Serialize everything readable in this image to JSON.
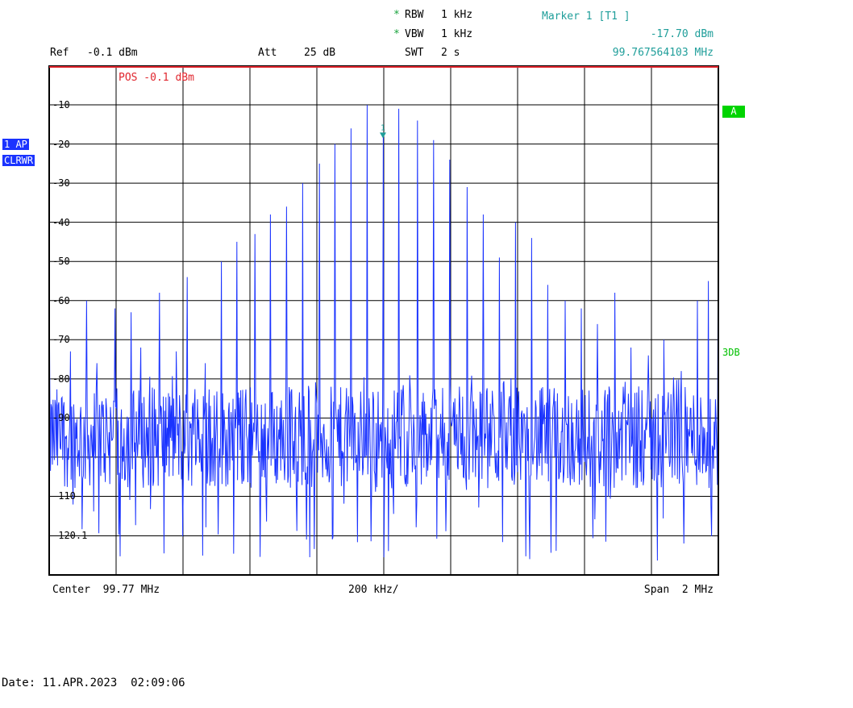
{
  "header": {
    "rbw_label": "RBW",
    "rbw_value": "1 kHz",
    "vbw_label": "VBW",
    "vbw_value": "1 kHz",
    "swt_label": "SWT",
    "swt_value": "2 s",
    "ref_label": "Ref",
    "ref_value": "-0.1 dBm",
    "att_label": "Att",
    "att_value": "25 dB",
    "star_symbol": "*"
  },
  "marker": {
    "title": "Marker 1 [T1 ]",
    "level": "-17.70 dBm",
    "frequency": "99.767564103 MHz",
    "flag": "1"
  },
  "pos_label": "POS -0.1 dBm",
  "side_badges": {
    "trace": "1 AP",
    "mode": "CLRWR"
  },
  "right_badges": {
    "a": "A",
    "threshold": "3DB"
  },
  "footer": {
    "center": "Center  99.77 MHz",
    "div": "200 kHz/",
    "span": "Span  2 MHz",
    "date": "Date: 11.APR.2023  02:09:06"
  },
  "colors": {
    "trace": "#1a33ff",
    "marker": "#1f9e9a",
    "ref_line": "#e0262e"
  },
  "chart_data": {
    "type": "line",
    "title": "",
    "xlabel": "",
    "ylabel": "",
    "center_mhz": 99.77,
    "span_mhz": 2,
    "x_range_mhz": [
      98.77,
      100.77
    ],
    "ylim": [
      -130.1,
      -0.1
    ],
    "y_ticks": [
      "-10",
      "-20",
      "-30",
      "-40",
      "-50",
      "-60",
      "-70",
      "-80",
      "-90",
      "-110",
      "-120.1"
    ],
    "y_tick_values": [
      -10,
      -20,
      -30,
      -40,
      -50,
      -60,
      -70,
      -80,
      -90,
      -110,
      -120.1
    ],
    "grid": true,
    "noise_floor_dbm": -95,
    "spurs_mhz": [
      98.77,
      98.833,
      98.881,
      98.913,
      98.967,
      99.015,
      99.043,
      99.1,
      99.15,
      99.182,
      99.236,
      99.284,
      99.331,
      99.384,
      99.432,
      99.48,
      99.528,
      99.577,
      99.624,
      99.673,
      99.72,
      99.768,
      99.815,
      99.871,
      99.919,
      99.967,
      100.02,
      100.068,
      100.116,
      100.164,
      100.212,
      100.26,
      100.312,
      100.36,
      100.408,
      100.46,
      100.508,
      100.56,
      100.608,
      100.66,
      100.708,
      100.741,
      100.77
    ],
    "spurs_dbm": [
      -55,
      -73,
      -60,
      -76,
      -62,
      -63,
      -72,
      -58,
      -73,
      -54,
      -76,
      -50,
      -45,
      -43,
      -38,
      -36,
      -30,
      -25,
      -20,
      -16,
      -10,
      -17.7,
      -11,
      -14,
      -19,
      -24,
      -31,
      -38,
      -49,
      -40,
      -44,
      -56,
      -60,
      -62,
      -66,
      -58,
      -72,
      -74,
      -70,
      -78,
      -60,
      -55,
      -55
    ]
  }
}
